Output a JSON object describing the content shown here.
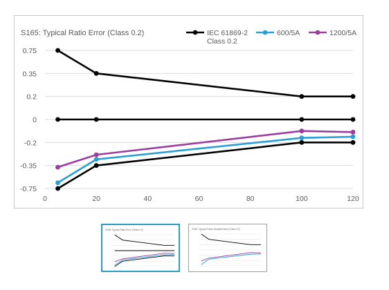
{
  "chart_data": {
    "type": "line",
    "title": "S165: Typical Ratio Error (Class 0.2)",
    "xlabel": "",
    "ylabel": "",
    "x_ticks": [
      0,
      20,
      40,
      60,
      80,
      100,
      120
    ],
    "y_ticks": [
      "0.75",
      "0.35",
      "0.2",
      "0",
      "-0.2",
      "-0.35",
      "-0.75"
    ],
    "xlim": [
      0,
      120
    ],
    "grid": "horizontal",
    "legend_position": "top-right",
    "series": [
      {
        "name": "IEC 61869-2 Class 0.2",
        "legend_lines": [
          "IEC 61869-2",
          "Class 0.2"
        ],
        "color": "#000000",
        "x": [
          5,
          20,
          100,
          120
        ],
        "y": [
          "0.75",
          "0.35",
          "0.2",
          "0.2"
        ]
      },
      {
        "name": "IEC 61869-2 Class 0.2",
        "legend": false,
        "color": "#000000",
        "x": [
          5,
          20,
          100,
          120
        ],
        "y": [
          "0",
          "0",
          "0",
          "0"
        ]
      },
      {
        "name": "IEC 61869-2 Class 0.2",
        "legend": false,
        "color": "#000000",
        "x": [
          5,
          20,
          100,
          120
        ],
        "y": [
          "-0.75",
          "-0.35",
          "-0.2",
          "-0.2"
        ]
      },
      {
        "name": "600/5A",
        "legend_lines": [
          "600/5A"
        ],
        "color": "#2a9fd6",
        "x": [
          5,
          20,
          100,
          120
        ],
        "y": [
          "-0.65",
          "-0.31",
          "-0.16",
          "-0.15"
        ]
      },
      {
        "name": "1200/5A",
        "legend_lines": [
          "1200/5A"
        ],
        "color": "#9b3c9f",
        "x": [
          5,
          20,
          100,
          120
        ],
        "y": [
          "-0.38",
          "-0.28",
          "-0.1",
          "-0.11"
        ]
      }
    ]
  },
  "thumbnails": [
    {
      "label": "S165: Typical Ratio Error (Class 0.2)",
      "selected": true
    },
    {
      "label": "S165: Typical Phase Displacement (Class 0.2)",
      "selected": false
    }
  ],
  "colors": {
    "grid": "#d9d9d9",
    "axis_text": "#595959",
    "frame": "#c8c8c8",
    "thumb_selected": "#2a9bc4"
  }
}
